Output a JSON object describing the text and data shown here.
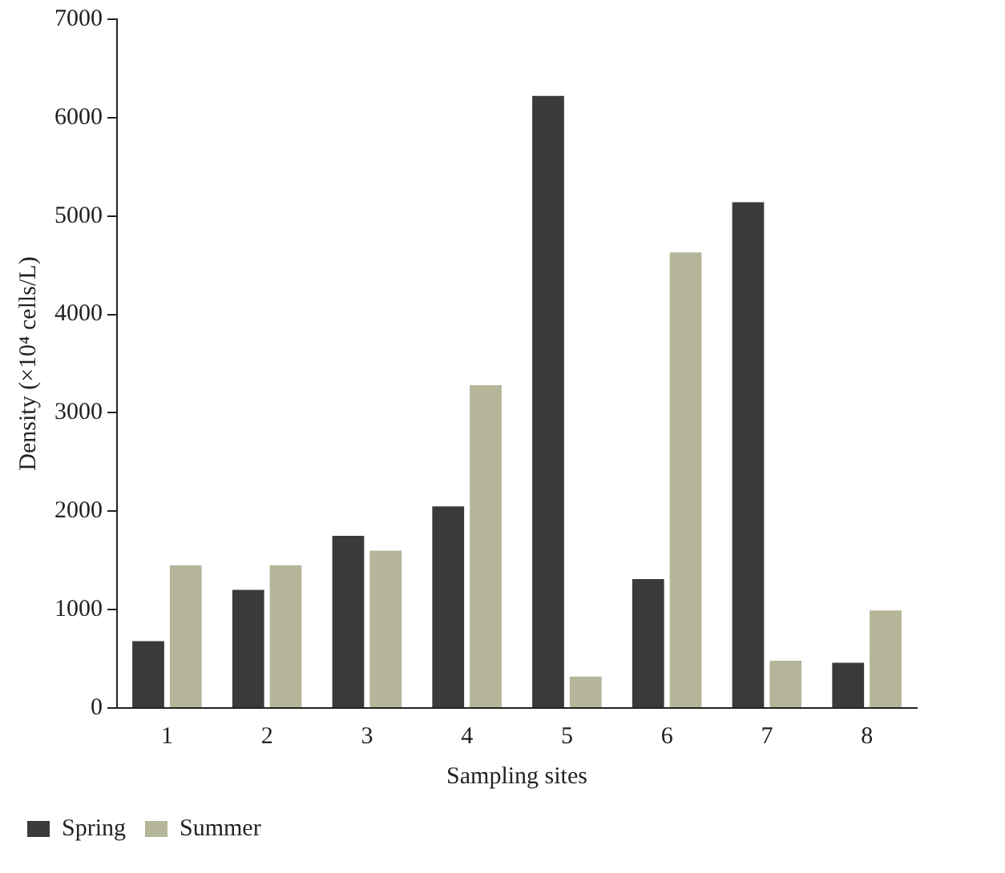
{
  "chart_data": {
    "type": "bar",
    "xlabel": "Sampling sites",
    "ylabel": "Density (×10⁴ cells/L)",
    "categories": [
      "1",
      "2",
      "3",
      "4",
      "5",
      "6",
      "7",
      "8"
    ],
    "series": [
      {
        "name": "Spring",
        "color": "#3a3a3a",
        "values": [
          680,
          1200,
          1750,
          2050,
          6220,
          1310,
          5140,
          460
        ]
      },
      {
        "name": "Summer",
        "color": "#b5b59a",
        "values": [
          1450,
          1450,
          1600,
          3280,
          320,
          4630,
          480,
          990
        ]
      }
    ],
    "ylim": [
      0,
      7000
    ],
    "yticks": [
      0,
      1000,
      2000,
      3000,
      4000,
      5000,
      6000,
      7000
    ],
    "grid": false,
    "legend": "bottom left"
  }
}
